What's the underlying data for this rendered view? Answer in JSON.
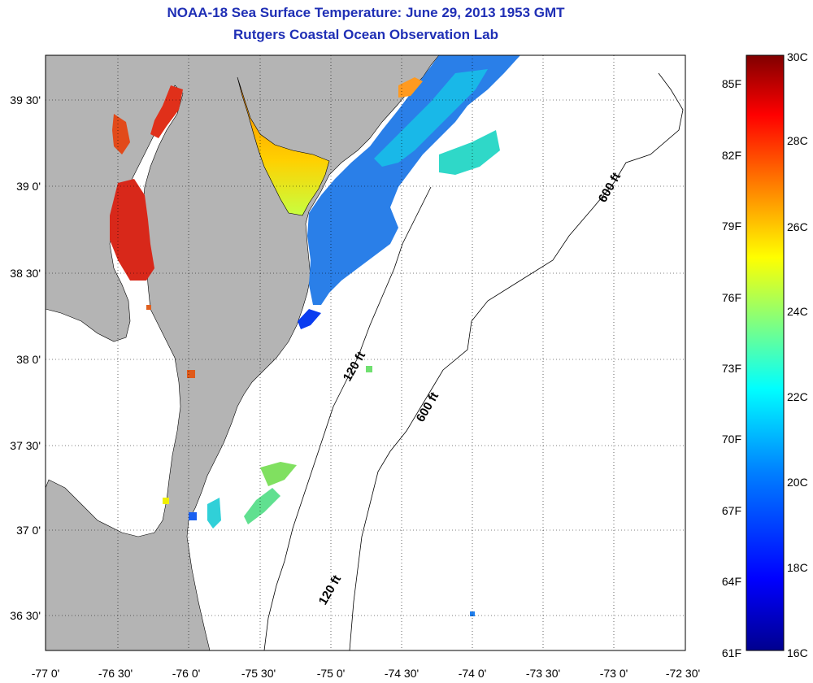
{
  "title": "NOAA-18 Sea Surface Temperature:  June 29, 2013 1953 GMT",
  "subtitle": "Rutgers Coastal Ocean Observation Lab",
  "map": {
    "lon_ticks": [
      "-77 0'",
      "-76 30'",
      "-76 0'",
      "-75 30'",
      "-75 0'",
      "-74 30'",
      "-74 0'",
      "-73 30'",
      "-73 0'",
      "-72 30'"
    ],
    "lat_ticks": [
      "39 30'",
      "39 0'",
      "38 30'",
      "38 0'",
      "37 30'",
      "37 0'",
      "36 30'"
    ],
    "contour_labels": [
      {
        "text": "600 ft",
        "id": "north"
      },
      {
        "text": "120 ft",
        "id": "mid"
      },
      {
        "text": "600 ft",
        "id": "south"
      },
      {
        "text": "120 ft",
        "id": "bottom"
      }
    ],
    "land_color": "#b4b4b4",
    "water_color": "#ffffff"
  },
  "colorbar": {
    "fahrenheit": [
      "85F",
      "82F",
      "79F",
      "76F",
      "73F",
      "70F",
      "67F",
      "64F",
      "61F"
    ],
    "celsius": [
      "30C",
      "28C",
      "26C",
      "24C",
      "22C",
      "20C",
      "18C",
      "16C"
    ],
    "range_c": [
      16,
      30
    ],
    "colors": [
      "#00008f",
      "#0000ff",
      "#0080ff",
      "#00ffff",
      "#80ff80",
      "#ffff00",
      "#ff8000",
      "#ff0000",
      "#800000"
    ]
  }
}
